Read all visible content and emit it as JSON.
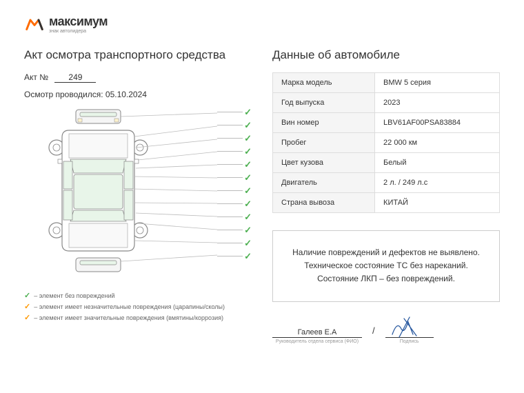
{
  "logo": {
    "main": "максимум",
    "sub": "знак автолидера"
  },
  "left": {
    "title": "Акт осмотра транспортного средства",
    "act_label": "Акт №",
    "act_number": "249",
    "inspect_label": "Осмотр проводился:",
    "inspect_date": "05.10.2024",
    "legend": {
      "ok": "– элемент без повреждений",
      "minor": "– элемент имеет незначительные повреждения (царапины/сколы)",
      "major": "– элемент имеет значительные повреждения (вмятины/коррозия)"
    }
  },
  "right": {
    "title": "Данные об автомобиле",
    "rows": [
      {
        "label": "Марка модель",
        "value": "BMW 5 серия"
      },
      {
        "label": "Год выпуска",
        "value": "2023"
      },
      {
        "label": "Вин номер",
        "value": "LBV61AF00PSA83884"
      },
      {
        "label": "Пробег",
        "value": "22 000 км"
      },
      {
        "label": "Цвет кузова",
        "value": "Белый"
      },
      {
        "label": "Двигатель",
        "value": "2 л. / 249 л.с"
      },
      {
        "label": "Страна вывоза",
        "value": "КИТАЙ"
      }
    ],
    "notes": "Наличие повреждений и дефектов не выявлено. Техническое состояние ТС без нареканий. Состояние ЛКП – без повреждений.",
    "signature": {
      "name": "Галеев Е.А",
      "name_label": "Руководитель отдела сервиса (ФИО)",
      "sig_label": "Подпись"
    }
  },
  "colors": {
    "check_ok": "#4caf50",
    "check_warn": "#ff9800",
    "car_body": "#e8f5e9",
    "car_line": "#666666"
  }
}
